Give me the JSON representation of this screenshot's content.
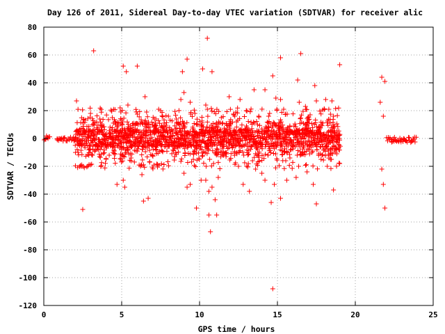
{
  "chart_data": {
    "type": "scatter",
    "title": "Day 126 of 2011, Sidereal Day-to-day VTEC variation (SDTVAR) for receiver alic",
    "xlabel": "GPS time / hours",
    "ylabel": "SDTVAR / TECUs",
    "xlim": [
      0,
      25
    ],
    "ylim": [
      -120,
      80
    ],
    "x_ticks": [
      0,
      5,
      10,
      15,
      20,
      25
    ],
    "y_ticks": [
      80,
      60,
      40,
      20,
      0,
      -20,
      -40,
      -60,
      -80,
      -100,
      -120
    ],
    "grid": true,
    "marker": "+",
    "colors": {
      "series": "#ff0000",
      "grid": "#a0a0a0",
      "axis": "#000000"
    },
    "dense_band": [
      {
        "x_start": 0.0,
        "x_end": 0.35,
        "y_min": -1,
        "y_max": 2
      },
      {
        "x_start": 0.8,
        "x_end": 2.0,
        "y_min": -2,
        "y_max": 1
      },
      {
        "x_start": 2.0,
        "x_end": 19.0,
        "y_min": -6,
        "y_max": 6
      },
      {
        "x_start": 22.0,
        "x_end": 23.9,
        "y_min": -3,
        "y_max": 1
      }
    ],
    "points": [
      [
        3.2,
        63
      ],
      [
        9.2,
        57
      ],
      [
        10.5,
        72
      ],
      [
        16.5,
        61
      ],
      [
        5.1,
        52
      ],
      [
        6.0,
        52
      ],
      [
        5.3,
        48
      ],
      [
        8.9,
        48
      ],
      [
        10.8,
        48
      ],
      [
        10.2,
        50
      ],
      [
        15.2,
        58
      ],
      [
        19.0,
        53
      ],
      [
        14.7,
        45
      ],
      [
        16.3,
        42
      ],
      [
        21.7,
        44
      ],
      [
        21.9,
        41
      ],
      [
        6.5,
        30
      ],
      [
        9.0,
        33
      ],
      [
        13.5,
        35
      ],
      [
        14.2,
        35
      ],
      [
        14.9,
        29
      ],
      [
        15.2,
        28
      ],
      [
        17.4,
        38
      ],
      [
        16.4,
        26
      ],
      [
        18.1,
        28
      ],
      [
        18.5,
        27
      ],
      [
        2.1,
        27
      ],
      [
        4.9,
        22
      ],
      [
        5.4,
        24
      ],
      [
        6.6,
        19
      ],
      [
        7.5,
        20
      ],
      [
        8.8,
        28
      ],
      [
        9.4,
        26
      ],
      [
        10.4,
        24
      ],
      [
        10.5,
        21
      ],
      [
        11.9,
        30
      ],
      [
        12.6,
        28
      ],
      [
        13.0,
        20
      ],
      [
        14.5,
        18
      ],
      [
        15.4,
        21
      ],
      [
        16.8,
        23
      ],
      [
        17.5,
        27
      ],
      [
        18.3,
        21
      ],
      [
        21.6,
        26
      ],
      [
        21.8,
        16
      ],
      [
        3.0,
        18
      ],
      [
        3.6,
        14
      ],
      [
        4.4,
        15
      ],
      [
        7.2,
        14
      ],
      [
        8.0,
        16
      ],
      [
        9.7,
        18
      ],
      [
        11.4,
        15
      ],
      [
        12.2,
        17
      ],
      [
        13.8,
        16
      ],
      [
        17.1,
        17
      ],
      [
        18.6,
        16
      ],
      [
        2.6,
        -21
      ],
      [
        3.0,
        -19
      ],
      [
        4.0,
        -15
      ],
      [
        4.7,
        -33
      ],
      [
        5.1,
        -30
      ],
      [
        5.2,
        -35
      ],
      [
        6.3,
        -26
      ],
      [
        6.4,
        -45
      ],
      [
        6.7,
        -43
      ],
      [
        9.0,
        -25
      ],
      [
        9.2,
        -35
      ],
      [
        9.4,
        -33
      ],
      [
        9.8,
        -50
      ],
      [
        10.1,
        -30
      ],
      [
        10.4,
        -30
      ],
      [
        10.6,
        -38
      ],
      [
        10.8,
        -35
      ],
      [
        11.0,
        -44
      ],
      [
        11.2,
        -28
      ],
      [
        10.6,
        -55
      ],
      [
        11.1,
        -55
      ],
      [
        10.7,
        -67
      ],
      [
        12.5,
        -20
      ],
      [
        12.8,
        -33
      ],
      [
        13.2,
        -38
      ],
      [
        13.6,
        -22
      ],
      [
        14.0,
        -25
      ],
      [
        14.2,
        -30
      ],
      [
        14.6,
        -46
      ],
      [
        14.8,
        -33
      ],
      [
        15.2,
        -43
      ],
      [
        14.7,
        -108
      ],
      [
        15.6,
        -30
      ],
      [
        16.2,
        -28
      ],
      [
        16.9,
        -24
      ],
      [
        17.3,
        -33
      ],
      [
        17.5,
        -47
      ],
      [
        18.2,
        -20
      ],
      [
        18.6,
        -37
      ],
      [
        19.0,
        -18
      ],
      [
        21.7,
        -22
      ],
      [
        21.8,
        -33
      ],
      [
        21.9,
        -50
      ],
      [
        2.5,
        -51
      ],
      [
        2.2,
        -10
      ],
      [
        3.5,
        -8
      ],
      [
        4.2,
        -12
      ],
      [
        5.6,
        -14
      ],
      [
        6.8,
        -17
      ],
      [
        7.6,
        -9
      ],
      [
        8.4,
        -13
      ],
      [
        9.6,
        -15
      ],
      [
        10.9,
        -18
      ],
      [
        11.7,
        -13
      ],
      [
        12.4,
        -11
      ],
      [
        13.4,
        -16
      ],
      [
        14.4,
        -12
      ],
      [
        15.8,
        -14
      ],
      [
        16.6,
        -10
      ],
      [
        17.8,
        -15
      ],
      [
        18.4,
        -12
      ]
    ]
  }
}
